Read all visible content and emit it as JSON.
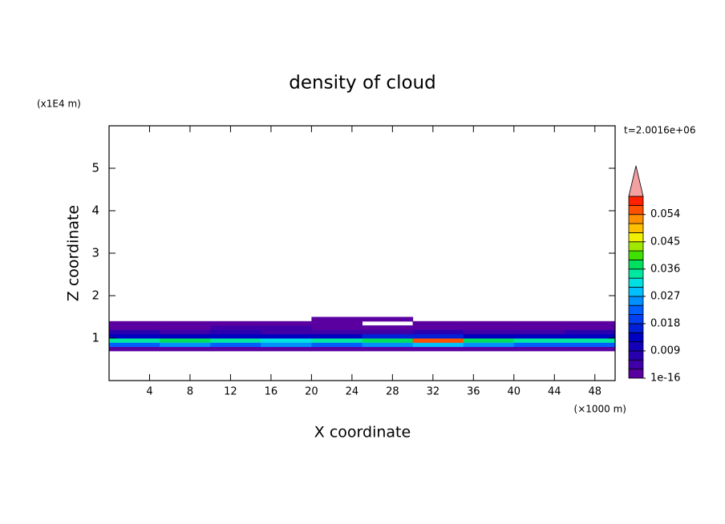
{
  "chart_data": {
    "type": "contour",
    "title": "density of cloud",
    "x_label": "X coordinate",
    "y_label": "Z coordinate",
    "x_unit": "(×1000 m)",
    "y_unit": "(x1E4 m)",
    "time_label": "t=2.0016e+06",
    "xlim": [
      0,
      50
    ],
    "ylim": [
      0,
      6
    ],
    "xticks": [
      4,
      8,
      12,
      16,
      20,
      24,
      28,
      32,
      36,
      40,
      44,
      48
    ],
    "yticks": [
      1,
      2,
      3,
      4,
      5
    ],
    "x": [
      2.5,
      7.5,
      12.5,
      17.5,
      22.5,
      27.5,
      32.5,
      37.5,
      42.5,
      47.5
    ],
    "y": [
      0.75,
      0.85,
      0.95,
      1.05,
      1.15,
      1.25,
      1.35,
      1.45
    ],
    "values": [
      [
        0.002,
        0.002,
        0.002,
        0.002,
        0.002,
        0.002,
        0.002,
        0.002,
        0.002,
        0.002
      ],
      [
        0.021,
        0.024,
        0.022,
        0.025,
        0.023,
        0.026,
        0.028,
        0.024,
        0.022,
        0.023
      ],
      [
        0.033,
        0.036,
        0.034,
        0.031,
        0.035,
        0.038,
        0.055,
        0.037,
        0.033,
        0.035
      ],
      [
        0.012,
        0.014,
        0.013,
        0.012,
        0.014,
        0.015,
        0.016,
        0.013,
        0.012,
        0.013
      ],
      [
        0.006,
        0.005,
        0.006,
        0.005,
        0.004,
        0.005,
        0.006,
        0.004,
        0.005,
        0.006
      ],
      [
        0.002,
        0.002,
        0.003,
        0.003,
        0.002,
        0.002,
        0.002,
        0.002,
        0.002,
        0.002
      ],
      [
        0.001,
        0.001,
        0.001,
        0.001,
        0.001,
        0,
        0.001,
        0.001,
        0.001,
        0.001
      ],
      [
        0,
        0,
        0,
        0,
        0.001,
        0.001,
        0,
        0,
        0,
        0
      ]
    ],
    "colorbar": {
      "levels": [
        1e-16,
        0.003,
        0.006,
        0.009,
        0.012,
        0.015,
        0.018,
        0.021,
        0.024,
        0.027,
        0.03,
        0.033,
        0.036,
        0.039,
        0.042,
        0.045,
        0.048,
        0.051,
        0.054,
        0.057,
        0.06
      ],
      "colors": [
        "#5a00a0",
        "#4000a8",
        "#2800b0",
        "#1400b8",
        "#0000c0",
        "#0020d8",
        "#0040f0",
        "#0060ff",
        "#0090ff",
        "#00c0ff",
        "#00e0e0",
        "#00e8a0",
        "#00e060",
        "#40e000",
        "#a0e800",
        "#f0f000",
        "#ffc000",
        "#ff9000",
        "#ff5000",
        "#ff2000"
      ],
      "over_color": "#f4a0a0",
      "ticks": [
        1e-16,
        0.009,
        0.018,
        0.027,
        0.036,
        0.045,
        0.054
      ]
    }
  }
}
